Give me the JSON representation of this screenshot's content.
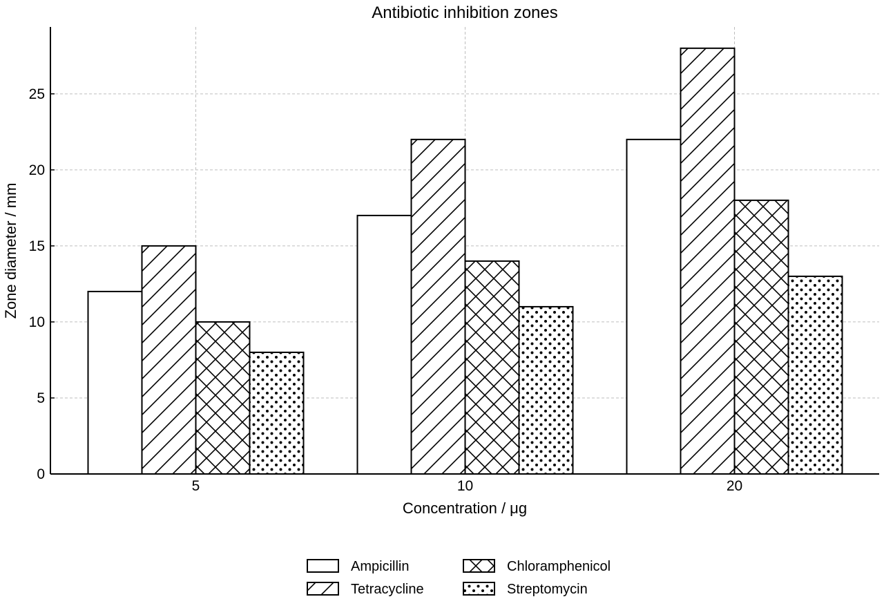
{
  "chart_data": {
    "type": "bar",
    "title": "Antibiotic inhibition zones",
    "xlabel": "Concentration / μg",
    "ylabel": "Zone diameter / mm",
    "categories": [
      "5",
      "10",
      "20"
    ],
    "series": [
      {
        "name": "Ampicillin",
        "values": [
          12,
          17,
          22
        ],
        "pattern": "none"
      },
      {
        "name": "Tetracycline",
        "values": [
          15,
          22,
          28
        ],
        "pattern": "diagonal"
      },
      {
        "name": "Chloramphenicol",
        "values": [
          10,
          14,
          18
        ],
        "pattern": "crosshatch"
      },
      {
        "name": "Streptomycin",
        "values": [
          8,
          11,
          13
        ],
        "pattern": "dots"
      }
    ],
    "ylim": [
      0,
      29.4
    ],
    "yticks": [
      0,
      5,
      10,
      15,
      20,
      25
    ],
    "grid": true,
    "legend_position": "bottom-center"
  }
}
